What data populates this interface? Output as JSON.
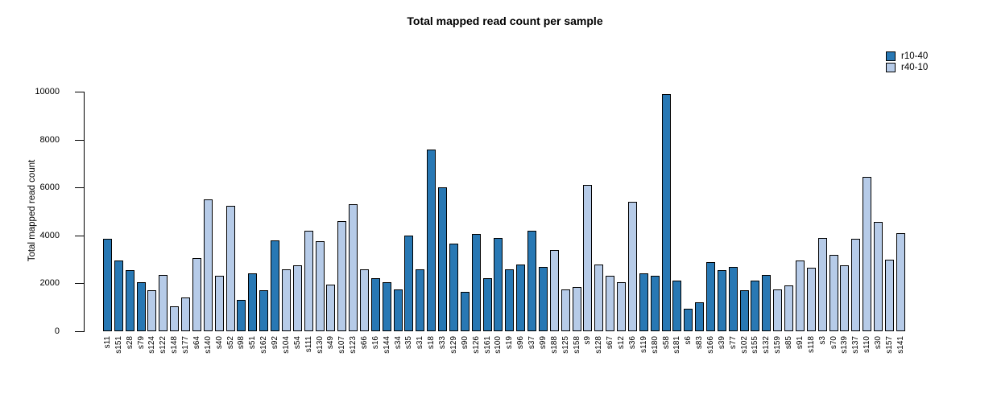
{
  "title": "Total mapped read count per sample",
  "y_axis": {
    "label": "Total mapped read count"
  },
  "legend": {
    "items": [
      {
        "label": "r10-40",
        "color": "#2878B4"
      },
      {
        "label": "r40-10",
        "color": "#B6CBE8"
      }
    ]
  },
  "chart_data": {
    "type": "bar",
    "title": "Total mapped read count per sample",
    "xlabel": "",
    "ylabel": "Total mapped read count",
    "ylim": [
      0,
      10000
    ],
    "yticks": [
      0,
      2000,
      4000,
      6000,
      8000,
      10000
    ],
    "grid": false,
    "legend_position": "top-right",
    "series": [
      {
        "name": "r10-40",
        "color": "#2878B4"
      },
      {
        "name": "r40-10",
        "color": "#B6CBE8"
      }
    ],
    "bars": [
      {
        "label": "s11",
        "value": 3850,
        "series": "r10-40"
      },
      {
        "label": "s151",
        "value": 2950,
        "series": "r10-40"
      },
      {
        "label": "s28",
        "value": 2550,
        "series": "r10-40"
      },
      {
        "label": "s79",
        "value": 2050,
        "series": "r10-40"
      },
      {
        "label": "s124",
        "value": 1700,
        "series": "r40-10"
      },
      {
        "label": "s122",
        "value": 2350,
        "series": "r40-10"
      },
      {
        "label": "s148",
        "value": 1050,
        "series": "r40-10"
      },
      {
        "label": "s177",
        "value": 1400,
        "series": "r40-10"
      },
      {
        "label": "s64",
        "value": 3050,
        "series": "r40-10"
      },
      {
        "label": "s140",
        "value": 5500,
        "series": "r40-10"
      },
      {
        "label": "s40",
        "value": 2300,
        "series": "r40-10"
      },
      {
        "label": "s52",
        "value": 5250,
        "series": "r40-10"
      },
      {
        "label": "s98",
        "value": 1300,
        "series": "r10-40"
      },
      {
        "label": "s51",
        "value": 2400,
        "series": "r10-40"
      },
      {
        "label": "s162",
        "value": 1700,
        "series": "r10-40"
      },
      {
        "label": "s92",
        "value": 3800,
        "series": "r10-40"
      },
      {
        "label": "s104",
        "value": 2600,
        "series": "r40-10"
      },
      {
        "label": "s54",
        "value": 2750,
        "series": "r40-10"
      },
      {
        "label": "s111",
        "value": 4200,
        "series": "r40-10"
      },
      {
        "label": "s130",
        "value": 3750,
        "series": "r40-10"
      },
      {
        "label": "s49",
        "value": 1950,
        "series": "r40-10"
      },
      {
        "label": "s107",
        "value": 4600,
        "series": "r40-10"
      },
      {
        "label": "s123",
        "value": 5300,
        "series": "r40-10"
      },
      {
        "label": "s66",
        "value": 2600,
        "series": "r40-10"
      },
      {
        "label": "s16",
        "value": 2200,
        "series": "r10-40"
      },
      {
        "label": "s144",
        "value": 2050,
        "series": "r10-40"
      },
      {
        "label": "s34",
        "value": 1750,
        "series": "r10-40"
      },
      {
        "label": "s35",
        "value": 4000,
        "series": "r10-40"
      },
      {
        "label": "s31",
        "value": 2600,
        "series": "r10-40"
      },
      {
        "label": "s18",
        "value": 7600,
        "series": "r10-40"
      },
      {
        "label": "s33",
        "value": 6000,
        "series": "r10-40"
      },
      {
        "label": "s129",
        "value": 3650,
        "series": "r10-40"
      },
      {
        "label": "s90",
        "value": 1650,
        "series": "r10-40"
      },
      {
        "label": "s126",
        "value": 4050,
        "series": "r10-40"
      },
      {
        "label": "s161",
        "value": 2200,
        "series": "r10-40"
      },
      {
        "label": "s100",
        "value": 3900,
        "series": "r10-40"
      },
      {
        "label": "s19",
        "value": 2600,
        "series": "r10-40"
      },
      {
        "label": "s96",
        "value": 2800,
        "series": "r10-40"
      },
      {
        "label": "s37",
        "value": 4200,
        "series": "r10-40"
      },
      {
        "label": "s99",
        "value": 2700,
        "series": "r10-40"
      },
      {
        "label": "s188",
        "value": 3400,
        "series": "r40-10"
      },
      {
        "label": "s125",
        "value": 1750,
        "series": "r40-10"
      },
      {
        "label": "s158",
        "value": 1850,
        "series": "r40-10"
      },
      {
        "label": "s9",
        "value": 6100,
        "series": "r40-10"
      },
      {
        "label": "s128",
        "value": 2800,
        "series": "r40-10"
      },
      {
        "label": "s67",
        "value": 2300,
        "series": "r40-10"
      },
      {
        "label": "s12",
        "value": 2050,
        "series": "r40-10"
      },
      {
        "label": "s36",
        "value": 5400,
        "series": "r40-10"
      },
      {
        "label": "s119",
        "value": 2400,
        "series": "r10-40"
      },
      {
        "label": "s180",
        "value": 2300,
        "series": "r10-40"
      },
      {
        "label": "s58",
        "value": 9900,
        "series": "r10-40"
      },
      {
        "label": "s181",
        "value": 2100,
        "series": "r10-40"
      },
      {
        "label": "s6",
        "value": 950,
        "series": "r10-40"
      },
      {
        "label": "s83",
        "value": 1200,
        "series": "r10-40"
      },
      {
        "label": "s166",
        "value": 2900,
        "series": "r10-40"
      },
      {
        "label": "s39",
        "value": 2550,
        "series": "r10-40"
      },
      {
        "label": "s77",
        "value": 2700,
        "series": "r10-40"
      },
      {
        "label": "s102",
        "value": 1700,
        "series": "r10-40"
      },
      {
        "label": "s155",
        "value": 2100,
        "series": "r10-40"
      },
      {
        "label": "s132",
        "value": 2350,
        "series": "r10-40"
      },
      {
        "label": "s159",
        "value": 1750,
        "series": "r40-10"
      },
      {
        "label": "s85",
        "value": 1900,
        "series": "r40-10"
      },
      {
        "label": "s91",
        "value": 2950,
        "series": "r40-10"
      },
      {
        "label": "s118",
        "value": 2650,
        "series": "r40-10"
      },
      {
        "label": "s3",
        "value": 3900,
        "series": "r40-10"
      },
      {
        "label": "s70",
        "value": 3200,
        "series": "r40-10"
      },
      {
        "label": "s139",
        "value": 2750,
        "series": "r40-10"
      },
      {
        "label": "s137",
        "value": 3850,
        "series": "r40-10"
      },
      {
        "label": "s110",
        "value": 6450,
        "series": "r40-10"
      },
      {
        "label": "s30",
        "value": 4550,
        "series": "r40-10"
      },
      {
        "label": "s157",
        "value": 3000,
        "series": "r40-10"
      },
      {
        "label": "s141",
        "value": 4100,
        "series": "r40-10"
      }
    ]
  }
}
